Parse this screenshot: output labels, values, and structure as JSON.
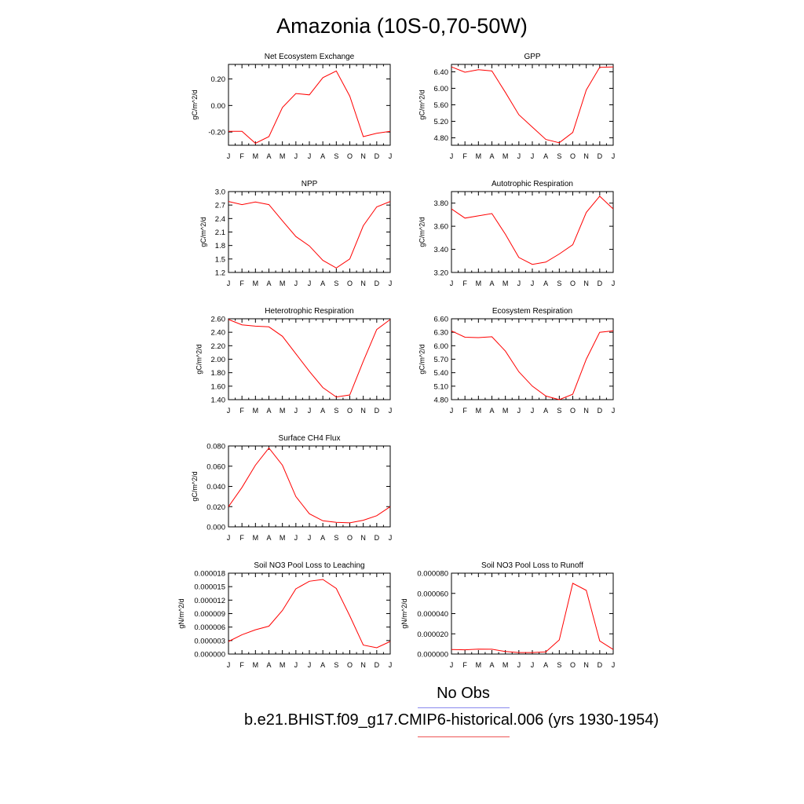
{
  "figure": {
    "title": "Amazonia (10S-0,70-50W)",
    "months": [
      "J",
      "F",
      "M",
      "A",
      "M",
      "J",
      "J",
      "A",
      "S",
      "O",
      "N",
      "D",
      "J"
    ],
    "line_color": "#ff0000",
    "legend": [
      {
        "label": "No Obs",
        "color": "#8888ee"
      },
      {
        "label": "b.e21.BHIST.f09_g17.CMIP6-historical.006 (yrs 1930-1954)",
        "color": "#ee5555"
      }
    ]
  },
  "chart_data": [
    {
      "type": "line",
      "title": "Net Ecosystem Exchange",
      "ylabel": "gC/m^2/d",
      "ylim": [
        -0.3,
        0.31
      ],
      "yticks": [
        -0.2,
        0.0,
        0.2
      ],
      "ytick_labels": [
        "-0.20",
        "0.00",
        "0.20"
      ],
      "values": [
        -0.195,
        -0.195,
        -0.285,
        -0.235,
        -0.015,
        0.09,
        0.08,
        0.21,
        0.26,
        0.07,
        -0.235,
        -0.21,
        -0.195
      ]
    },
    {
      "type": "line",
      "title": "GPP",
      "ylabel": "gC/m^2/d",
      "ylim": [
        4.62,
        6.58
      ],
      "yticks": [
        4.8,
        5.2,
        5.6,
        6.0,
        6.4
      ],
      "ytick_labels": [
        "4.80",
        "5.20",
        "5.60",
        "6.00",
        "6.40"
      ],
      "values": [
        6.52,
        6.39,
        6.45,
        6.42,
        5.9,
        5.36,
        5.06,
        4.76,
        4.68,
        4.93,
        5.96,
        6.51,
        6.52
      ]
    },
    {
      "type": "line",
      "title": "NPP",
      "ylabel": "gC/m^2/d",
      "ylim": [
        1.2,
        3.0
      ],
      "yticks": [
        1.2,
        1.5,
        1.8,
        2.1,
        2.4,
        2.7,
        3.0
      ],
      "ytick_labels": [
        "1.2",
        "1.5",
        "1.8",
        "2.1",
        "2.4",
        "2.7",
        "3.0"
      ],
      "values": [
        2.78,
        2.71,
        2.77,
        2.71,
        2.35,
        2.0,
        1.79,
        1.47,
        1.3,
        1.5,
        2.24,
        2.66,
        2.78
      ]
    },
    {
      "type": "line",
      "title": "Autotrophic Respiration",
      "ylabel": "gC/m^2/d",
      "ylim": [
        3.2,
        3.9
      ],
      "yticks": [
        3.2,
        3.4,
        3.6,
        3.8
      ],
      "ytick_labels": [
        "3.20",
        "3.40",
        "3.60",
        "3.80"
      ],
      "values": [
        3.75,
        3.67,
        3.69,
        3.71,
        3.53,
        3.33,
        3.27,
        3.29,
        3.36,
        3.44,
        3.72,
        3.86,
        3.75
      ]
    },
    {
      "type": "line",
      "title": "Heterotrophic Respiration",
      "ylabel": "gC/m^2/d",
      "ylim": [
        1.4,
        2.6
      ],
      "yticks": [
        1.4,
        1.6,
        1.8,
        2.0,
        2.2,
        2.4,
        2.6
      ],
      "ytick_labels": [
        "1.40",
        "1.60",
        "1.80",
        "2.00",
        "2.20",
        "2.40",
        "2.60"
      ],
      "values": [
        2.59,
        2.51,
        2.49,
        2.48,
        2.34,
        2.08,
        1.82,
        1.58,
        1.44,
        1.47,
        1.97,
        2.44,
        2.59
      ]
    },
    {
      "type": "line",
      "title": "Ecosystem Respiration",
      "ylabel": "gC/m^2/d",
      "ylim": [
        4.8,
        6.6
      ],
      "yticks": [
        4.8,
        5.1,
        5.4,
        5.7,
        6.0,
        6.3,
        6.6
      ],
      "ytick_labels": [
        "4.80",
        "5.10",
        "5.40",
        "5.70",
        "6.00",
        "6.30",
        "6.60"
      ],
      "values": [
        6.33,
        6.19,
        6.18,
        6.2,
        5.88,
        5.42,
        5.1,
        4.88,
        4.8,
        4.92,
        5.7,
        6.3,
        6.33
      ]
    },
    {
      "type": "line",
      "title": "Surface CH4 Flux",
      "ylabel": "gC/m^2/d",
      "ylim": [
        0.0,
        0.08
      ],
      "yticks": [
        0.0,
        0.02,
        0.04,
        0.06,
        0.08
      ],
      "ytick_labels": [
        "0.000",
        "0.020",
        "0.040",
        "0.060",
        "0.080"
      ],
      "values": [
        0.02,
        0.039,
        0.061,
        0.078,
        0.061,
        0.03,
        0.013,
        0.006,
        0.0045,
        0.004,
        0.0065,
        0.011,
        0.02
      ]
    },
    {
      "type": "line",
      "title": "Soil NO3 Pool Loss to Leaching",
      "ylabel": "gN/m^2/d",
      "ylim": [
        0.0,
        1.8e-05
      ],
      "yticks": [
        0.0,
        3e-06,
        6e-06,
        9e-06,
        1.2e-05,
        1.5e-05,
        1.8e-05
      ],
      "ytick_labels": [
        "0.000000",
        "0.000003",
        "0.000006",
        "0.000009",
        "0.000012",
        "0.000015",
        "0.000018"
      ],
      "values": [
        2.8e-06,
        4.3e-06,
        5.4e-06,
        6.2e-06,
        9.7e-06,
        1.45e-05,
        1.62e-05,
        1.66e-05,
        1.46e-05,
        8.5e-06,
        2e-06,
        1.4e-06,
        2.8e-06
      ]
    },
    {
      "type": "line",
      "title": "Soil NO3 Pool Loss to Runoff",
      "ylabel": "gN/m^2/d",
      "ylim": [
        0.0,
        8e-05
      ],
      "yticks": [
        0.0,
        2e-05,
        4e-05,
        6e-05,
        8e-05
      ],
      "ytick_labels": [
        "0.000000",
        "0.000020",
        "0.000040",
        "0.000060",
        "0.000080"
      ],
      "values": [
        4.5e-06,
        4.2e-06,
        4.8e-06,
        4.7e-06,
        2.5e-06,
        1.5e-06,
        1.5e-06,
        2.2e-06,
        1.4e-05,
        7e-05,
        6.3e-05,
        1.3e-05,
        4.5e-06
      ]
    }
  ]
}
